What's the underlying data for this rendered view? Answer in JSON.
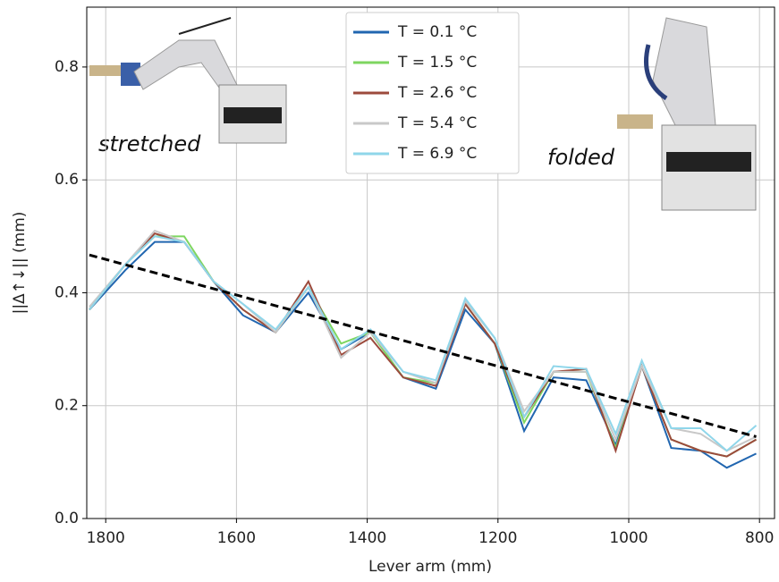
{
  "chart_data": {
    "type": "line",
    "x_label": "Lever arm (mm)",
    "y_label": "||Δ↑↓|| (mm)",
    "annotations": [
      "stretched",
      "folded"
    ],
    "x": [
      1825,
      1770,
      1725,
      1680,
      1635,
      1590,
      1540,
      1490,
      1440,
      1395,
      1345,
      1295,
      1250,
      1205,
      1160,
      1115,
      1065,
      1020,
      980,
      935,
      890,
      850,
      805
    ],
    "series": [
      {
        "name": "T = 0.1 °C",
        "color": "#2166b0",
        "values": [
          0.37,
          0.44,
          0.49,
          0.49,
          0.42,
          0.36,
          0.33,
          0.4,
          0.3,
          0.33,
          0.25,
          0.23,
          0.37,
          0.31,
          0.155,
          0.25,
          0.245,
          0.13,
          0.27,
          0.125,
          0.12,
          0.09,
          0.115
        ]
      },
      {
        "name": "T = 1.5 °C",
        "color": "#7ed660",
        "values": [
          0.37,
          0.45,
          0.5,
          0.5,
          0.42,
          0.37,
          0.33,
          0.41,
          0.31,
          0.33,
          0.25,
          0.24,
          0.38,
          0.31,
          0.17,
          0.26,
          0.26,
          0.125,
          0.27,
          0.14,
          0.12,
          0.11,
          0.14
        ]
      },
      {
        "name": "T = 2.6 °C",
        "color": "#9c4a3c",
        "values": [
          0.37,
          0.45,
          0.505,
          0.49,
          0.42,
          0.37,
          0.33,
          0.42,
          0.29,
          0.32,
          0.25,
          0.235,
          0.38,
          0.31,
          0.18,
          0.26,
          0.265,
          0.12,
          0.27,
          0.14,
          0.12,
          0.11,
          0.14
        ]
      },
      {
        "name": "T = 5.4 °C",
        "color": "#c8c8c8",
        "values": [
          0.375,
          0.45,
          0.51,
          0.49,
          0.42,
          0.38,
          0.33,
          0.41,
          0.285,
          0.33,
          0.26,
          0.24,
          0.385,
          0.32,
          0.19,
          0.26,
          0.26,
          0.14,
          0.27,
          0.16,
          0.15,
          0.12,
          0.145
        ]
      },
      {
        "name": "T = 6.9 °C",
        "color": "#8fd6ea",
        "values": [
          0.37,
          0.45,
          0.5,
          0.49,
          0.42,
          0.38,
          0.335,
          0.41,
          0.3,
          0.335,
          0.26,
          0.245,
          0.39,
          0.32,
          0.18,
          0.27,
          0.265,
          0.15,
          0.28,
          0.16,
          0.16,
          0.12,
          0.165
        ]
      }
    ],
    "fit": {
      "x": [
        1825,
        805
      ],
      "values": [
        0.467,
        0.145
      ],
      "color": "#000000",
      "style": "dashed"
    },
    "xlim": [
      1829,
      777
    ],
    "ylim": [
      0,
      0.906
    ],
    "xticks": [
      1800,
      1600,
      1400,
      1200,
      1000,
      800
    ],
    "yticks": [
      {
        "value": 0,
        "label": "0.0"
      },
      0.2,
      0.4,
      0.6,
      0.8
    ],
    "grid": true,
    "legend": "upper center"
  }
}
